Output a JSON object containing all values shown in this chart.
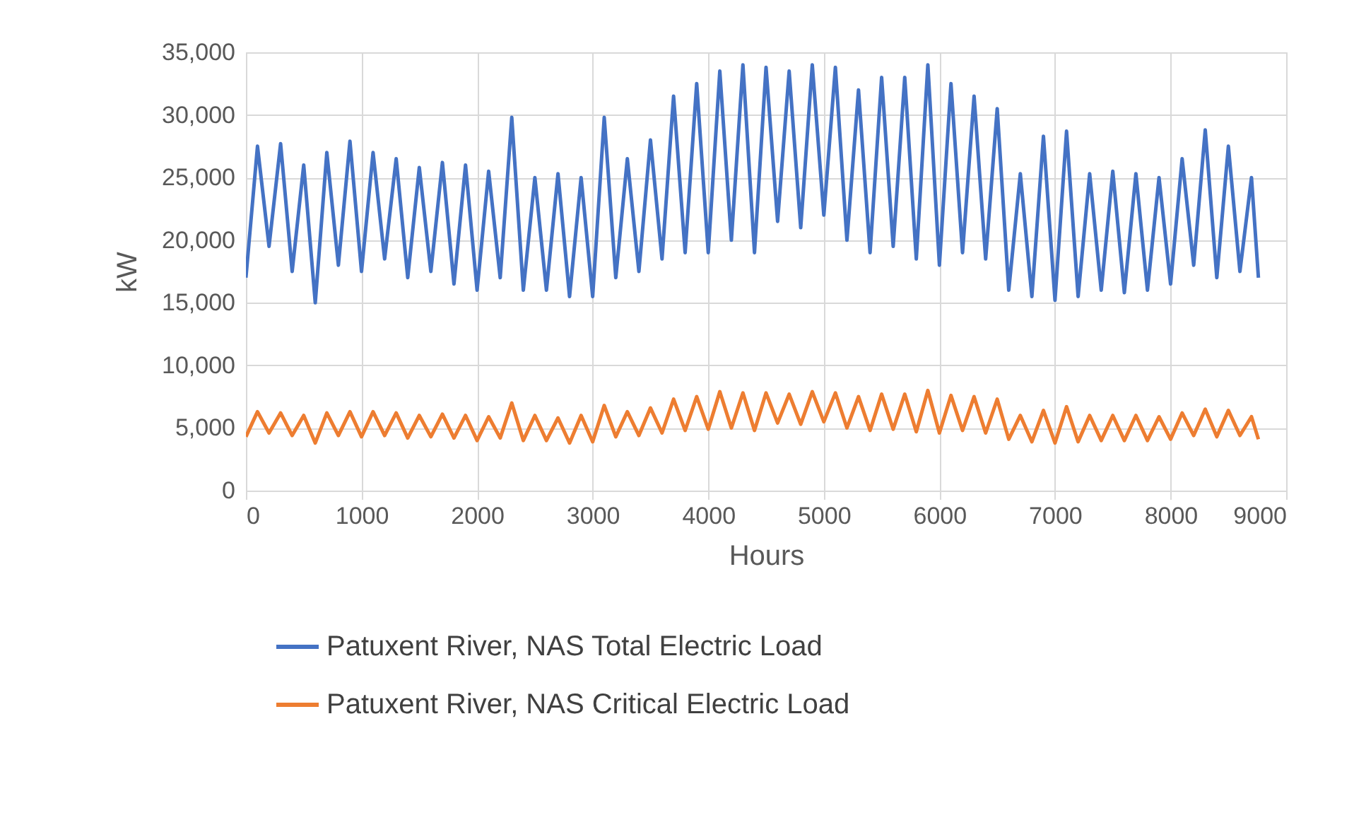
{
  "chart_data": {
    "type": "line",
    "xlabel": "Hours",
    "ylabel": "kW",
    "x": [
      0,
      100,
      200,
      300,
      400,
      500,
      600,
      700,
      800,
      900,
      1000,
      1100,
      1200,
      1300,
      1400,
      1500,
      1600,
      1700,
      1800,
      1900,
      2000,
      2100,
      2200,
      2300,
      2400,
      2500,
      2600,
      2700,
      2800,
      2900,
      3000,
      3100,
      3200,
      3300,
      3400,
      3500,
      3600,
      3700,
      3800,
      3900,
      4000,
      4100,
      4200,
      4300,
      4400,
      4500,
      4600,
      4700,
      4800,
      4900,
      5000,
      5100,
      5200,
      5300,
      5400,
      5500,
      5600,
      5700,
      5800,
      5900,
      6000,
      6100,
      6200,
      6300,
      6400,
      6500,
      6600,
      6700,
      6800,
      6900,
      7000,
      7100,
      7200,
      7300,
      7400,
      7500,
      7600,
      7700,
      7800,
      7900,
      8000,
      8100,
      8200,
      8300,
      8400,
      8500,
      8600,
      8700,
      8760
    ],
    "series": [
      {
        "name": "Patuxent River, NAS Total Electric Load",
        "color": "#4472c4",
        "values": [
          17000,
          27500,
          19500,
          27700,
          17500,
          26000,
          15000,
          27000,
          18000,
          27900,
          17500,
          27000,
          18500,
          26500,
          17000,
          25800,
          17500,
          26200,
          16500,
          26000,
          16000,
          25500,
          17000,
          29800,
          16000,
          25000,
          16000,
          25300,
          15500,
          25000,
          15500,
          29800,
          17000,
          26500,
          17500,
          28000,
          18500,
          31500,
          19000,
          32500,
          19000,
          33500,
          20000,
          34000,
          19000,
          33800,
          21500,
          33500,
          21000,
          34000,
          22000,
          33800,
          20000,
          32000,
          19000,
          33000,
          19500,
          33000,
          18500,
          34000,
          18000,
          32500,
          19000,
          31500,
          18500,
          30500,
          16000,
          25300,
          15500,
          28300,
          15200,
          28700,
          15500,
          25300,
          16000,
          25500,
          15800,
          25300,
          16000,
          25000,
          16500,
          26500,
          18000,
          28800,
          17000,
          27500,
          17500,
          25000,
          17000
        ]
      },
      {
        "name": "Patuxent River, NAS Critical Electric Load",
        "color": "#ed7d31",
        "values": [
          4300,
          6300,
          4600,
          6200,
          4400,
          6000,
          3800,
          6200,
          4400,
          6300,
          4300,
          6300,
          4400,
          6200,
          4200,
          6000,
          4300,
          6100,
          4200,
          6000,
          4000,
          5900,
          4200,
          7000,
          4000,
          6000,
          4000,
          5800,
          3800,
          6000,
          3900,
          6800,
          4300,
          6300,
          4400,
          6600,
          4600,
          7300,
          4800,
          7500,
          4900,
          7900,
          5000,
          7800,
          4800,
          7800,
          5400,
          7700,
          5300,
          7900,
          5500,
          7800,
          5000,
          7500,
          4800,
          7700,
          4900,
          7700,
          4700,
          8000,
          4600,
          7600,
          4800,
          7500,
          4600,
          7300,
          4100,
          6000,
          3900,
          6400,
          3800,
          6700,
          3900,
          6000,
          4000,
          6000,
          4000,
          6000,
          4000,
          5900,
          4100,
          6200,
          4400,
          6500,
          4300,
          6400,
          4400,
          5900,
          4100
        ]
      }
    ],
    "xlim": [
      0,
      9000
    ],
    "xticks": [
      0,
      1000,
      2000,
      3000,
      4000,
      5000,
      6000,
      7000,
      8000,
      9000
    ],
    "ylim": [
      0,
      35000
    ],
    "yticks": [
      {
        "value": 0,
        "label": "0"
      },
      {
        "value": 5000,
        "label": "5,000"
      },
      {
        "value": 10000,
        "label": "10,000"
      },
      {
        "value": 15000,
        "label": "15,000"
      },
      {
        "value": 20000,
        "label": "20,000"
      },
      {
        "value": 25000,
        "label": "25,000"
      },
      {
        "value": 30000,
        "label": "30,000"
      },
      {
        "value": 35000,
        "label": "35,000"
      }
    ],
    "grid": true,
    "legend": "bottom",
    "line_style": "solid",
    "marker": "none"
  }
}
